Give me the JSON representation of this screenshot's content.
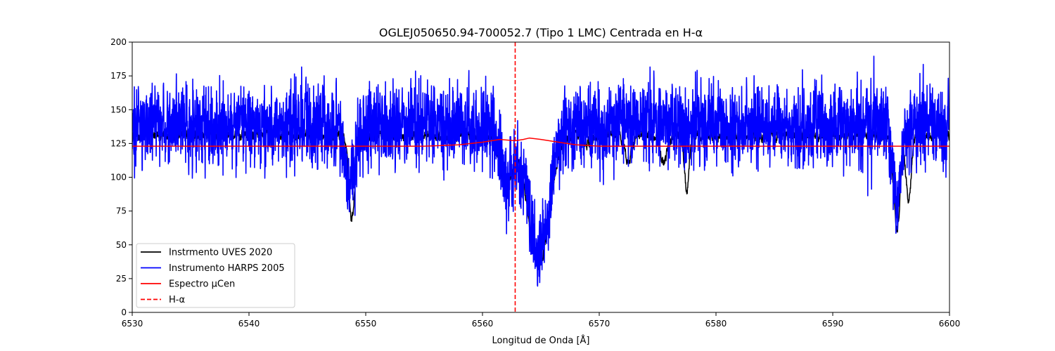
{
  "chart_data": {
    "type": "line",
    "title": "OGLEJ050650.94-700052.7 (Tipo 1 LMC) Centrada en H-α",
    "xlabel": "Longitud de Onda [Å]",
    "ylabel": "",
    "xlim": [
      6530,
      6600
    ],
    "ylim": [
      0,
      200
    ],
    "xticks": [
      6530,
      6540,
      6550,
      6560,
      6570,
      6580,
      6590,
      6600
    ],
    "yticks": [
      0,
      25,
      50,
      75,
      100,
      125,
      150,
      175,
      200
    ],
    "grid": false,
    "legend_position": "lower-left",
    "vline": {
      "x": 6562.8,
      "name": "H-α",
      "color": "#ff0000",
      "style": "dashed"
    },
    "series": [
      {
        "name": "Instrmento UVES 2020",
        "color": "#000000",
        "baseline": 131,
        "noise": 6,
        "absorption_lines": [
          {
            "center": 6548.8,
            "depth": 62,
            "width": 0.25
          },
          {
            "center": 6562.0,
            "depth": 40,
            "width": 0.5
          },
          {
            "center": 6564.8,
            "depth": 95,
            "width": 0.9
          },
          {
            "center": 6569.0,
            "depth": 6,
            "width": 0.4
          },
          {
            "center": 6572.5,
            "depth": 18,
            "width": 0.3
          },
          {
            "center": 6575.5,
            "depth": 20,
            "width": 0.3
          },
          {
            "center": 6577.5,
            "depth": 42,
            "width": 0.2
          },
          {
            "center": 6595.5,
            "depth": 68,
            "width": 0.28
          },
          {
            "center": 6596.5,
            "depth": 48,
            "width": 0.22
          }
        ]
      },
      {
        "name": "Instrumento HARPS 2005",
        "color": "#0000ff",
        "baseline": 138,
        "noise": 22,
        "absorption_lines": [
          {
            "center": 6548.6,
            "depth": 45,
            "width": 0.4
          },
          {
            "center": 6562.0,
            "depth": 40,
            "width": 0.5
          },
          {
            "center": 6564.8,
            "depth": 95,
            "width": 0.9
          },
          {
            "center": 6595.5,
            "depth": 55,
            "width": 0.3
          }
        ]
      },
      {
        "name": "Espectro μCen",
        "color": "#ff0000",
        "points": [
          [
            6530,
            123
          ],
          [
            6555,
            123
          ],
          [
            6558,
            124
          ],
          [
            6560,
            126
          ],
          [
            6561.5,
            128
          ],
          [
            6562.8,
            127
          ],
          [
            6563.5,
            128
          ],
          [
            6564.0,
            129
          ],
          [
            6565.0,
            128
          ],
          [
            6566.5,
            126
          ],
          [
            6568,
            124
          ],
          [
            6570,
            123
          ],
          [
            6600,
            123
          ]
        ]
      }
    ]
  }
}
